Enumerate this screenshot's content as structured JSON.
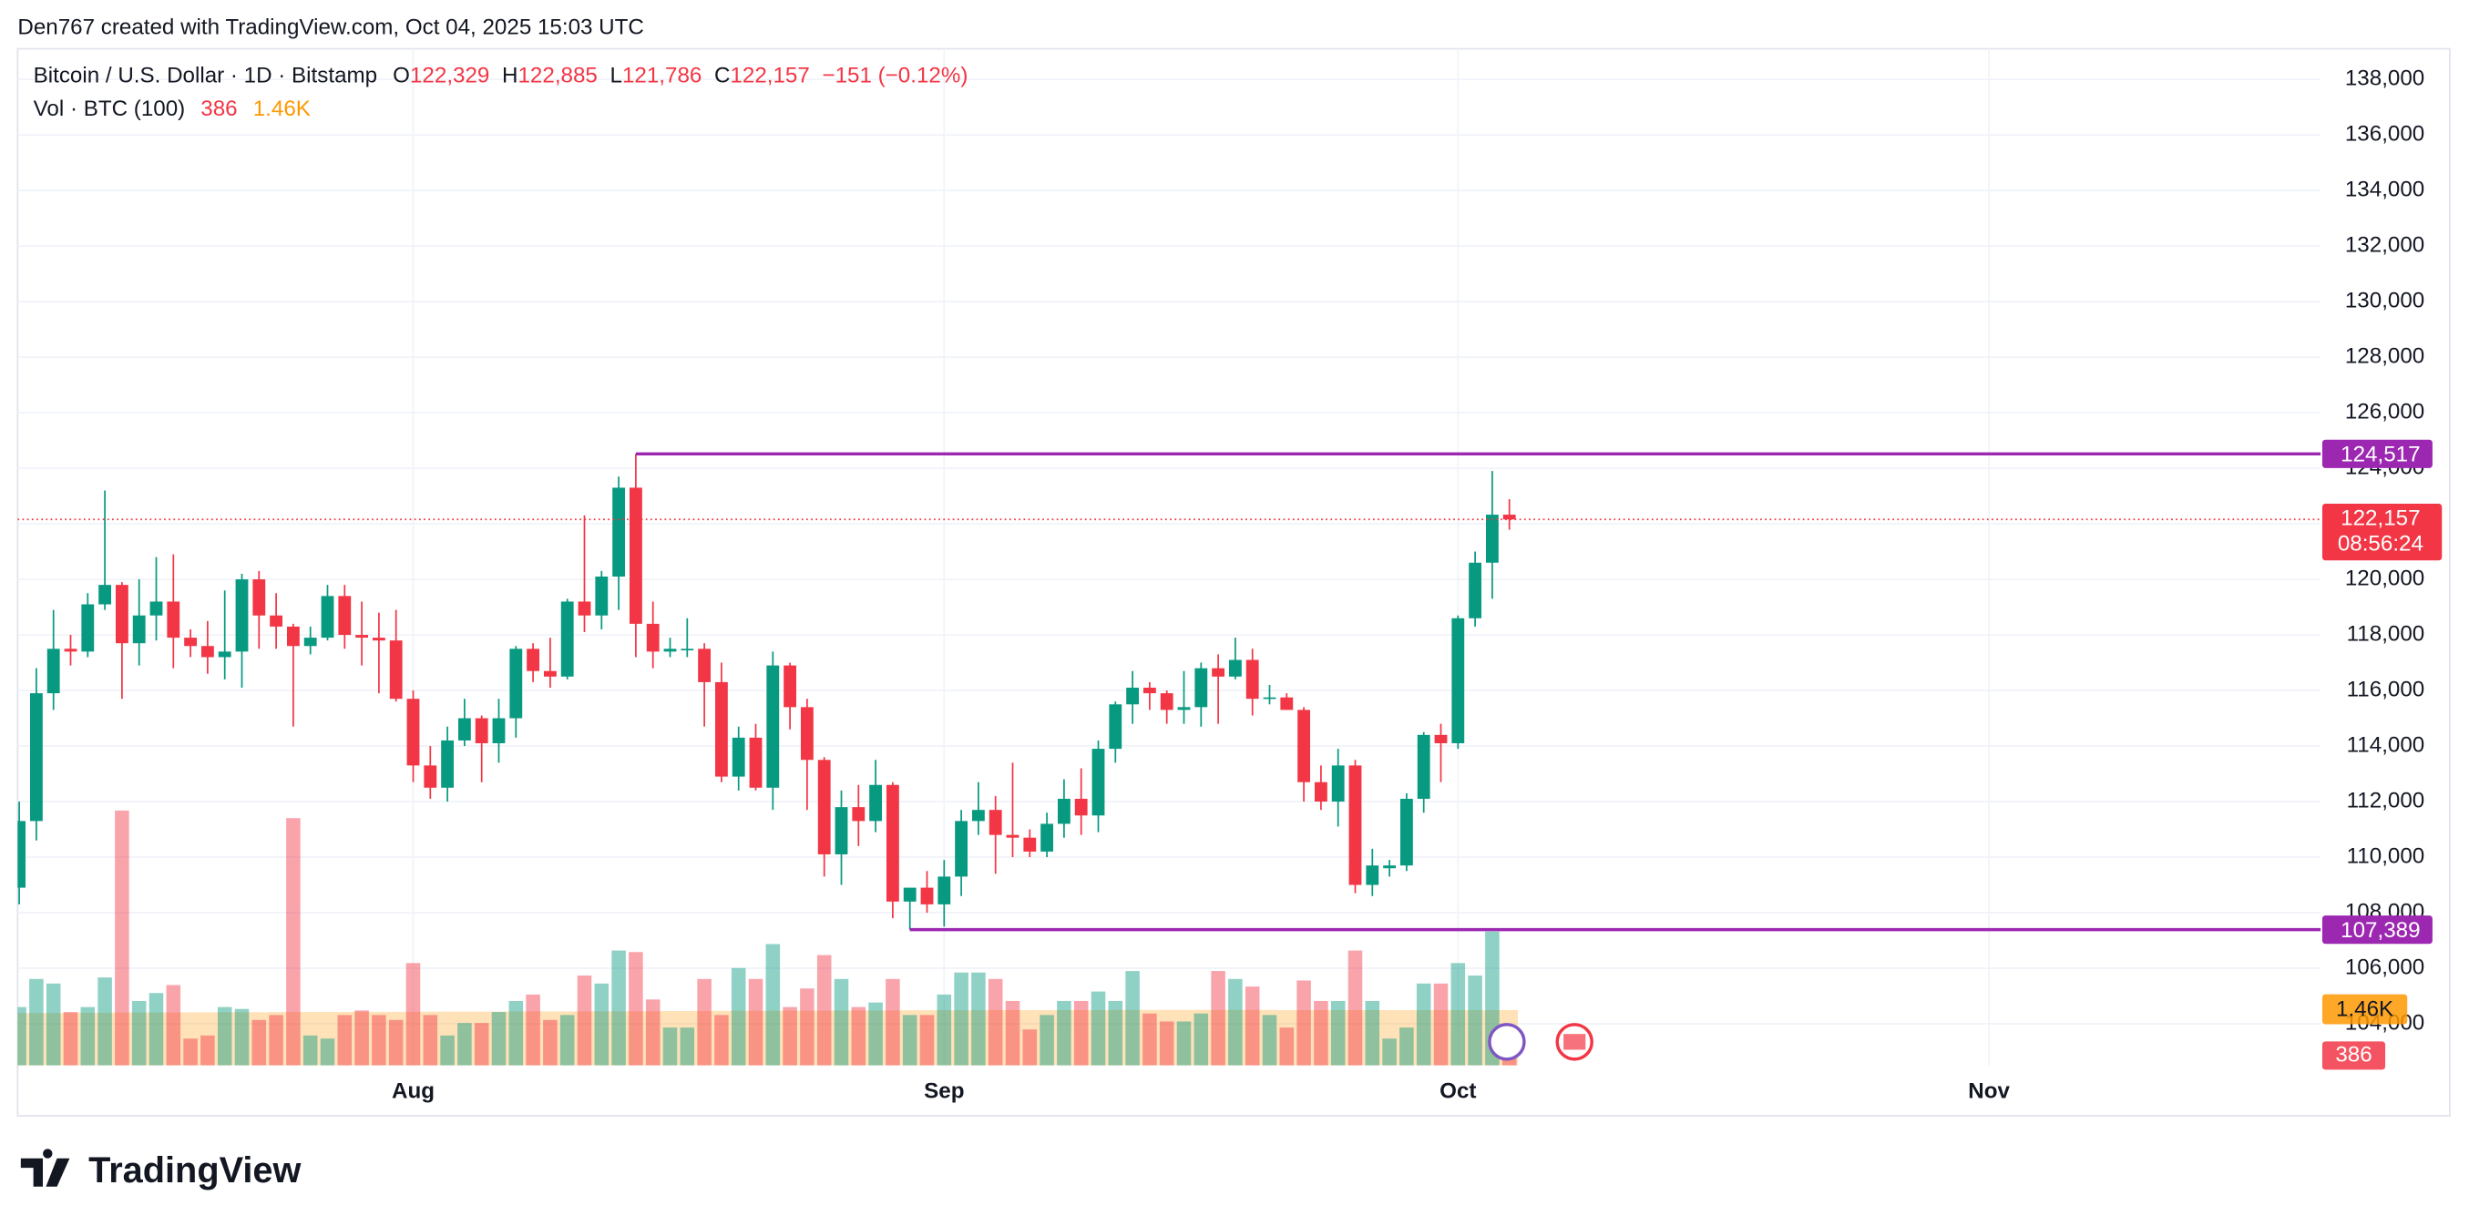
{
  "header": {
    "credit": "Den767 created with TradingView.com, Oct 04, 2025 15:03 UTC"
  },
  "footer": {
    "brand": "TradingView"
  },
  "chart_data": {
    "type": "candlestick",
    "title": "Bitcoin / U.S. Dollar · 1D · Bitstamp",
    "ohlc_legend": [
      {
        "key": "O",
        "value": "122,329"
      },
      {
        "key": "H",
        "value": "122,885"
      },
      {
        "key": "L",
        "value": "121,786"
      },
      {
        "key": "C",
        "value": "122,157"
      }
    ],
    "change": "−151 (−0.12%)",
    "volume_legend": {
      "title": "Vol · BTC (100)",
      "volume": "386",
      "ma": "1.46K"
    },
    "up_color": "#089981",
    "down_color": "#f23645",
    "ma_color": "#ff9800",
    "level_color": "#9c27b0",
    "grid": true,
    "categories": [
      null,
      null,
      null,
      null,
      null,
      null,
      null,
      null,
      null,
      null,
      null,
      null,
      null,
      null,
      null,
      null,
      null,
      null,
      null,
      null,
      null,
      null,
      null,
      null,
      null,
      null,
      null,
      null,
      null,
      null,
      null,
      null,
      null,
      null,
      null,
      null,
      null,
      null,
      null,
      null,
      null,
      null,
      null,
      null,
      null,
      null,
      null,
      null,
      null,
      null,
      null,
      null,
      null,
      null,
      null,
      null,
      null,
      null,
      null,
      null,
      null,
      null,
      null,
      null,
      null,
      null,
      null,
      null,
      null,
      null,
      null,
      null,
      null,
      null,
      null,
      null,
      null,
      null,
      null,
      null,
      null,
      null,
      null,
      null,
      null,
      null,
      null,
      null
    ],
    "open": [
      108900,
      111300,
      115900,
      117500,
      117400,
      119100,
      119800,
      117700,
      118700,
      119200,
      117900,
      117600,
      117200,
      117400,
      120000,
      118700,
      118300,
      117600,
      117900,
      119400,
      118000,
      117900,
      117800,
      115700,
      113300,
      112500,
      114200,
      115000,
      114100,
      115000,
      117500,
      116700,
      116500,
      119200,
      118700,
      120100,
      123300,
      118400,
      117400,
      117450,
      117500,
      116300,
      112900,
      114300,
      112500,
      116900,
      115400,
      113500,
      110100,
      111800,
      111300,
      112600,
      108400,
      108900,
      108300,
      109300,
      111300,
      111700,
      110800,
      110700,
      110200,
      111200,
      112100,
      111500,
      113900,
      115500,
      116100,
      115900,
      115300,
      115400,
      116800,
      116500,
      117100,
      115700,
      115750,
      115300,
      112700,
      112000,
      113300,
      109000,
      109600,
      109700,
      112100,
      114400,
      114100,
      118600,
      120600,
      122329
    ],
    "high": [
      112000,
      116800,
      118900,
      118000,
      119500,
      123200,
      119900,
      120000,
      120800,
      120900,
      118200,
      118500,
      119600,
      120200,
      120300,
      119500,
      118400,
      118300,
      119800,
      119800,
      119200,
      118800,
      118900,
      116000,
      114000,
      114700,
      115700,
      115100,
      115700,
      117600,
      117700,
      117900,
      119300,
      122300,
      120300,
      123700,
      124517,
      119200,
      117900,
      118600,
      117700,
      117000,
      114700,
      114800,
      117400,
      117000,
      115700,
      113600,
      112400,
      112600,
      113500,
      112700,
      108900,
      109500,
      109900,
      111700,
      112700,
      112200,
      113400,
      111000,
      111600,
      112800,
      113200,
      114200,
      115600,
      116700,
      116300,
      116000,
      116700,
      117000,
      117300,
      117900,
      117500,
      116200,
      115900,
      115400,
      113300,
      113900,
      113500,
      110300,
      109900,
      112300,
      114500,
      114800,
      118700,
      121000,
      123900,
      122885
    ],
    "low": [
      108300,
      110600,
      115300,
      116900,
      117200,
      118900,
      115700,
      116900,
      117800,
      116800,
      117200,
      116600,
      116400,
      116100,
      117500,
      117500,
      114700,
      117300,
      117800,
      117500,
      116900,
      115900,
      115600,
      112700,
      112100,
      112000,
      114000,
      112700,
      113400,
      114300,
      116300,
      116100,
      116400,
      118100,
      118200,
      118900,
      117200,
      116800,
      117200,
      117200,
      114700,
      112700,
      112400,
      112400,
      111700,
      114600,
      111700,
      109300,
      109000,
      110400,
      110900,
      107800,
      107389,
      108000,
      107500,
      108600,
      110800,
      109400,
      110000,
      110000,
      110000,
      110700,
      110800,
      110900,
      113400,
      114800,
      115300,
      114800,
      114800,
      114700,
      114800,
      116400,
      115100,
      115500,
      115300,
      112000,
      111700,
      111100,
      108700,
      108600,
      109300,
      109500,
      111600,
      112700,
      113900,
      118300,
      119300,
      121786
    ],
    "close": [
      111300,
      115900,
      117500,
      117400,
      119100,
      119800,
      117700,
      118700,
      119200,
      117900,
      117600,
      117200,
      117400,
      120000,
      118700,
      118300,
      117600,
      117900,
      119400,
      118000,
      117900,
      117800,
      115700,
      113300,
      112500,
      114200,
      115000,
      114100,
      115000,
      117500,
      116700,
      116500,
      119200,
      118700,
      120100,
      123300,
      118400,
      117400,
      117500,
      117500,
      116300,
      112900,
      114300,
      112500,
      116900,
      115400,
      113500,
      110100,
      111800,
      111300,
      112600,
      108400,
      108900,
      108300,
      109300,
      111300,
      111700,
      110800,
      110700,
      110200,
      111200,
      112100,
      111500,
      113900,
      115500,
      116100,
      115900,
      115300,
      115400,
      116800,
      116500,
      117100,
      115700,
      115750,
      115300,
      112700,
      112000,
      113300,
      109000,
      109700,
      109700,
      112100,
      114400,
      114100,
      118600,
      120600,
      122329,
      122157
    ],
    "volume": [
      1540,
      2280,
      2160,
      1410,
      1540,
      2320,
      6720,
      1700,
      1910,
      2120,
      710,
      790,
      1540,
      1490,
      1200,
      1330,
      6520,
      790,
      710,
      1330,
      1450,
      1330,
      1200,
      2700,
      1330,
      790,
      1120,
      1120,
      1410,
      1700,
      1870,
      1200,
      1330,
      2370,
      2160,
      3030,
      2990,
      1740,
      1000,
      1000,
      2280,
      1330,
      2570,
      2280,
      3200,
      1540,
      2030,
      2910,
      2280,
      1540,
      1660,
      2280,
      1330,
      1330,
      1870,
      2450,
      2450,
      2280,
      1700,
      950,
      1330,
      1700,
      1700,
      1950,
      1700,
      2490,
      1370,
      1160,
      1160,
      1370,
      2490,
      2280,
      2080,
      1330,
      1000,
      2240,
      1700,
      1700,
      3030,
      1700,
      710,
      1000,
      2160,
      2160,
      2700,
      2370,
      3530,
      386
    ],
    "volume_ma": [
      1380,
      1380,
      1385,
      1385,
      1390,
      1390,
      1395,
      1395,
      1400,
      1400,
      1400,
      1400,
      1405,
      1405,
      1405,
      1410,
      1410,
      1410,
      1410,
      1410,
      1415,
      1415,
      1415,
      1415,
      1420,
      1420,
      1420,
      1420,
      1420,
      1425,
      1425,
      1425,
      1425,
      1425,
      1430,
      1430,
      1430,
      1430,
      1435,
      1435,
      1435,
      1440,
      1440,
      1440,
      1440,
      1445,
      1445,
      1445,
      1450,
      1450,
      1450,
      1450,
      1455,
      1455,
      1455,
      1455,
      1455,
      1460,
      1460,
      1460,
      1460,
      1460,
      1460,
      1460,
      1465,
      1465,
      1465,
      1465,
      1465,
      1465,
      1465,
      1465,
      1465,
      1465,
      1460,
      1460,
      1460,
      1460,
      1460,
      1460,
      1460,
      1460,
      1460,
      1460,
      1460,
      1460,
      1460,
      1460
    ],
    "ylim": [
      102500,
      139100
    ],
    "yticks": [
      {
        "value": 104000,
        "label": "104,000"
      },
      {
        "value": 106000,
        "label": "106,000"
      },
      {
        "value": 108000,
        "label": "108,000"
      },
      {
        "value": 110000,
        "label": "110,000"
      },
      {
        "value": 112000,
        "label": "112,000"
      },
      {
        "value": 114000,
        "label": "114,000"
      },
      {
        "value": 116000,
        "label": "116,000"
      },
      {
        "value": 118000,
        "label": "118,000"
      },
      {
        "value": 120000,
        "label": "120,000"
      },
      {
        "value": 122000,
        "label": "122,000"
      },
      {
        "value": 124000,
        "label": "124,000"
      },
      {
        "value": 126000,
        "label": "126,000"
      },
      {
        "value": 128000,
        "label": "128,000"
      },
      {
        "value": 130000,
        "label": "130,000"
      },
      {
        "value": 132000,
        "label": "132,000"
      },
      {
        "value": 134000,
        "label": "134,000"
      },
      {
        "value": 136000,
        "label": "136,000"
      },
      {
        "value": 138000,
        "label": "138,000"
      }
    ],
    "xlim": [
      0,
      134
    ],
    "xticks": [
      {
        "value": 23,
        "label": "Aug"
      },
      {
        "value": 54,
        "label": "Sep"
      },
      {
        "value": 84,
        "label": "Oct"
      },
      {
        "value": 115,
        "label": "Nov"
      }
    ],
    "volume_ylim": [
      0,
      26800
    ],
    "levels": [
      {
        "value": 124517,
        "label": "124,517",
        "x": 36
      },
      {
        "value": 107389,
        "label": "107,389",
        "x": 52
      }
    ],
    "last_price": {
      "value": 122157,
      "label": "122,157",
      "countdown": "08:56:24"
    }
  }
}
